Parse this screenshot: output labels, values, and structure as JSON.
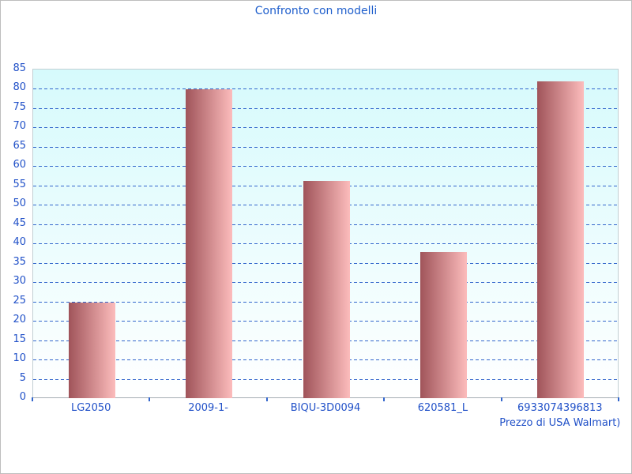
{
  "window": {
    "frame_color": "#bdbdbd",
    "background": "#ffffff"
  },
  "title": "Confronto con modelli",
  "chart_data": {
    "type": "bar",
    "title": "Confronto con modelli",
    "categories": [
      "LG2050",
      "2009-1-",
      "BIQU-3D0094",
      "620581_L",
      "6933074396813"
    ],
    "category_sublabels": [
      "",
      "",
      "",
      "",
      "Prezzo di USA Walmart)"
    ],
    "values": [
      24.7,
      79.8,
      56.2,
      37.8,
      81.9
    ],
    "xlabel": "",
    "ylabel": "",
    "ylim": [
      0,
      85
    ],
    "y_ticks": [
      0,
      5,
      10,
      15,
      20,
      25,
      30,
      35,
      40,
      45,
      50,
      55,
      60,
      65,
      70,
      75,
      80,
      85
    ],
    "grid": "horizontal-dashed",
    "legend": "none",
    "colors": {
      "title_text": "#1e5ecc",
      "axis_text": "#2151c8",
      "gridline": "#3366cc",
      "tick": "#3366cc",
      "bar_gradient_left": "#a0545a",
      "bar_gradient_right": "#fcbcbc",
      "plot_bg_top": "#d6fafc",
      "plot_bg_bottom": "#ffffff",
      "plot_border": "#c2cfd3",
      "axis_line": "#a5aeb4"
    }
  }
}
